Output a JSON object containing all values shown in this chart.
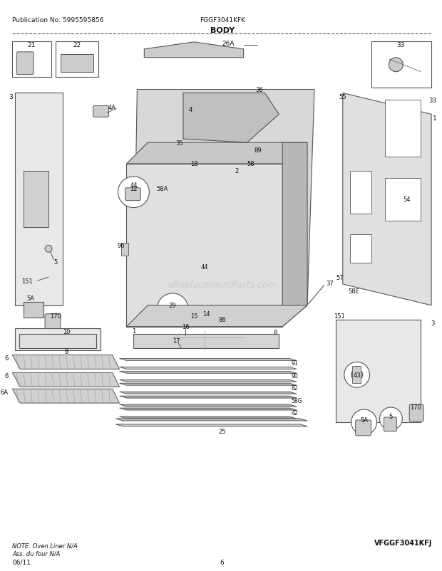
{
  "title": "BODY",
  "model": "FGGF3041KFK",
  "publication": "Publication No: 5995595856",
  "footer_left": "06/11",
  "footer_center": "6",
  "footer_right": "VFGGF3041KFJ",
  "note": "NOTE: Oven Liner N/A\nAss. du four N/A",
  "watermark": "eReplacementParts.com",
  "bg_color": "#ffffff",
  "line_color": "#555555",
  "text_color": "#111111",
  "light_gray": "#cccccc",
  "mid_gray": "#999999"
}
